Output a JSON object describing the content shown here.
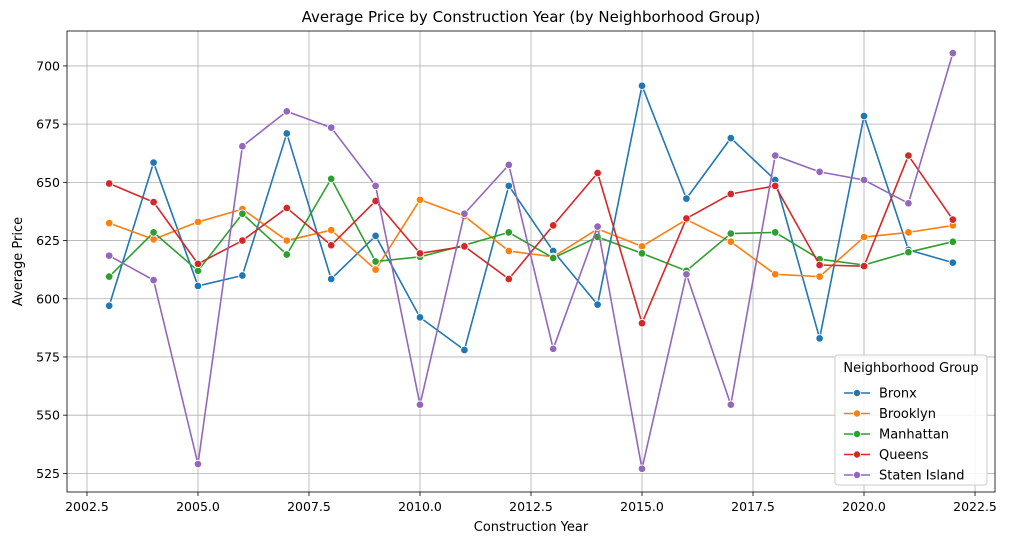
{
  "chart_data": {
    "type": "line",
    "title": "Average Price by Construction Year (by Neighborhood Group)",
    "xlabel": "Construction Year",
    "ylabel": "Average Price",
    "xlim": [
      2002.05,
      2022.95
    ],
    "ylim": [
      517,
      715
    ],
    "xticks": [
      2002.5,
      2005.0,
      2007.5,
      2010.0,
      2012.5,
      2015.0,
      2017.5,
      2020.0,
      2022.5
    ],
    "xtick_labels": [
      "2002.5",
      "2005.0",
      "2007.5",
      "2010.0",
      "2012.5",
      "2015.0",
      "2017.5",
      "2020.0",
      "2022.5"
    ],
    "yticks": [
      525,
      550,
      575,
      600,
      625,
      650,
      675,
      700
    ],
    "ytick_labels": [
      "525",
      "550",
      "575",
      "600",
      "625",
      "650",
      "675",
      "700"
    ],
    "grid": true,
    "legend": {
      "title": "Neighborhood Group",
      "position": "lower-right"
    },
    "x": [
      2003,
      2004,
      2005,
      2006,
      2007,
      2008,
      2009,
      2010,
      2011,
      2012,
      2013,
      2014,
      2015,
      2016,
      2017,
      2018,
      2019,
      2020,
      2021,
      2022
    ],
    "series": [
      {
        "name": "Bronx",
        "color": "#1f77b4",
        "values": [
          597,
          658.5,
          605.5,
          610,
          671,
          608.5,
          627,
          592,
          578,
          648.5,
          620.5,
          597.5,
          691.5,
          643,
          669,
          651,
          583,
          678.5,
          621,
          615.5
        ]
      },
      {
        "name": "Brooklyn",
        "color": "#ff7f0e",
        "values": [
          632.5,
          625.5,
          633,
          638.5,
          625,
          629.5,
          612.5,
          642.5,
          635.5,
          620.5,
          618,
          630,
          622.5,
          634,
          624.5,
          610.5,
          609.5,
          626.5,
          628.5,
          631.5
        ]
      },
      {
        "name": "Manhattan",
        "color": "#2ca02c",
        "values": [
          609.5,
          628.5,
          612,
          636.5,
          619,
          651.5,
          616,
          618,
          623,
          628.5,
          617.5,
          626.5,
          619.5,
          612,
          628,
          628.5,
          617,
          614.5,
          620,
          624.5
        ]
      },
      {
        "name": "Queens",
        "color": "#d62728",
        "values": [
          649.5,
          641.5,
          615,
          625,
          639,
          623,
          642,
          619.5,
          622.5,
          608.5,
          631.5,
          654,
          589.5,
          634.5,
          645,
          648.5,
          614.5,
          614,
          661.5,
          634
        ]
      },
      {
        "name": "Staten Island",
        "color": "#9467bd",
        "values": [
          618.5,
          608,
          529,
          665.5,
          680.5,
          673.5,
          648.5,
          554.5,
          636.5,
          657.5,
          578.5,
          631,
          527,
          610.5,
          554.5,
          661.5,
          654.5,
          651,
          641,
          705.5
        ]
      }
    ]
  }
}
